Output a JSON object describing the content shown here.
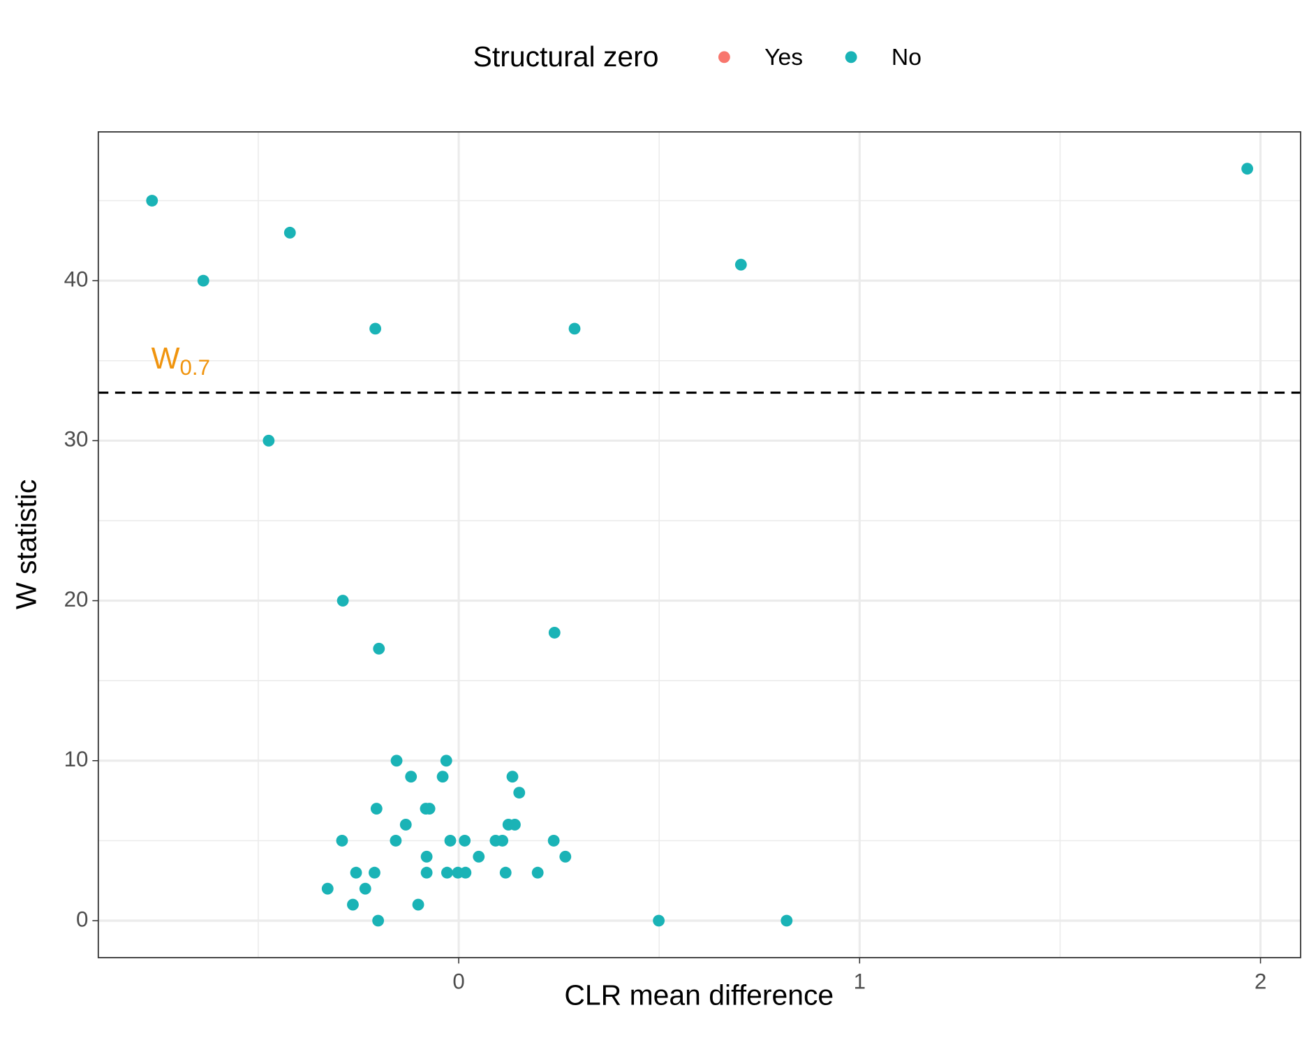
{
  "chart_data": {
    "type": "scatter",
    "xlabel": "CLR mean difference",
    "ylabel": "W statistic",
    "legend_title": "Structural zero",
    "legend_position": "top",
    "grid": true,
    "xlim": [
      -0.899,
      2.1
    ],
    "ylim": [
      -2.31,
      49.3
    ],
    "xticks": [
      0,
      1,
      2
    ],
    "yticks": [
      0,
      10,
      20,
      30,
      40
    ],
    "xminor": [
      -0.5,
      0.5,
      1.5
    ],
    "yminor": [
      5,
      15,
      25,
      35,
      45
    ],
    "reference_line": {
      "value": 33,
      "label": "W",
      "label_subscript": "0.7",
      "label_color": "#f0940e"
    },
    "series": [
      {
        "name": "Yes",
        "color": "#f8766d",
        "x": [],
        "values": []
      },
      {
        "name": "No",
        "color": "#1ab3b6",
        "x": [
          -0.765,
          1.967,
          -0.637,
          -0.421,
          -0.208,
          0.704,
          0.289,
          -0.474,
          -0.289,
          -0.199,
          0.239,
          -0.155,
          -0.031,
          -0.119,
          -0.04,
          0.134,
          0.151,
          -0.205,
          -0.082,
          -0.073,
          -0.132,
          0.124,
          0.14,
          -0.291,
          -0.157,
          -0.021,
          0.015,
          0.092,
          0.109,
          0.237,
          -0.08,
          0.05,
          0.266,
          -0.256,
          -0.21,
          -0.08,
          -0.029,
          -0.002,
          0.017,
          0.117,
          0.197,
          -0.327,
          -0.233,
          -0.264,
          -0.101,
          -0.201,
          0.499,
          0.818
        ],
        "values": [
          45,
          47,
          40,
          43,
          37,
          41,
          37,
          30,
          20,
          17,
          18,
          10,
          10,
          9,
          9,
          9,
          8,
          7,
          7,
          7,
          6,
          6,
          6,
          5,
          5,
          5,
          5,
          5,
          5,
          5,
          4,
          4,
          4,
          3,
          3,
          3,
          3,
          3,
          3,
          3,
          3,
          2,
          2,
          1,
          1,
          0,
          0,
          0
        ]
      }
    ]
  }
}
